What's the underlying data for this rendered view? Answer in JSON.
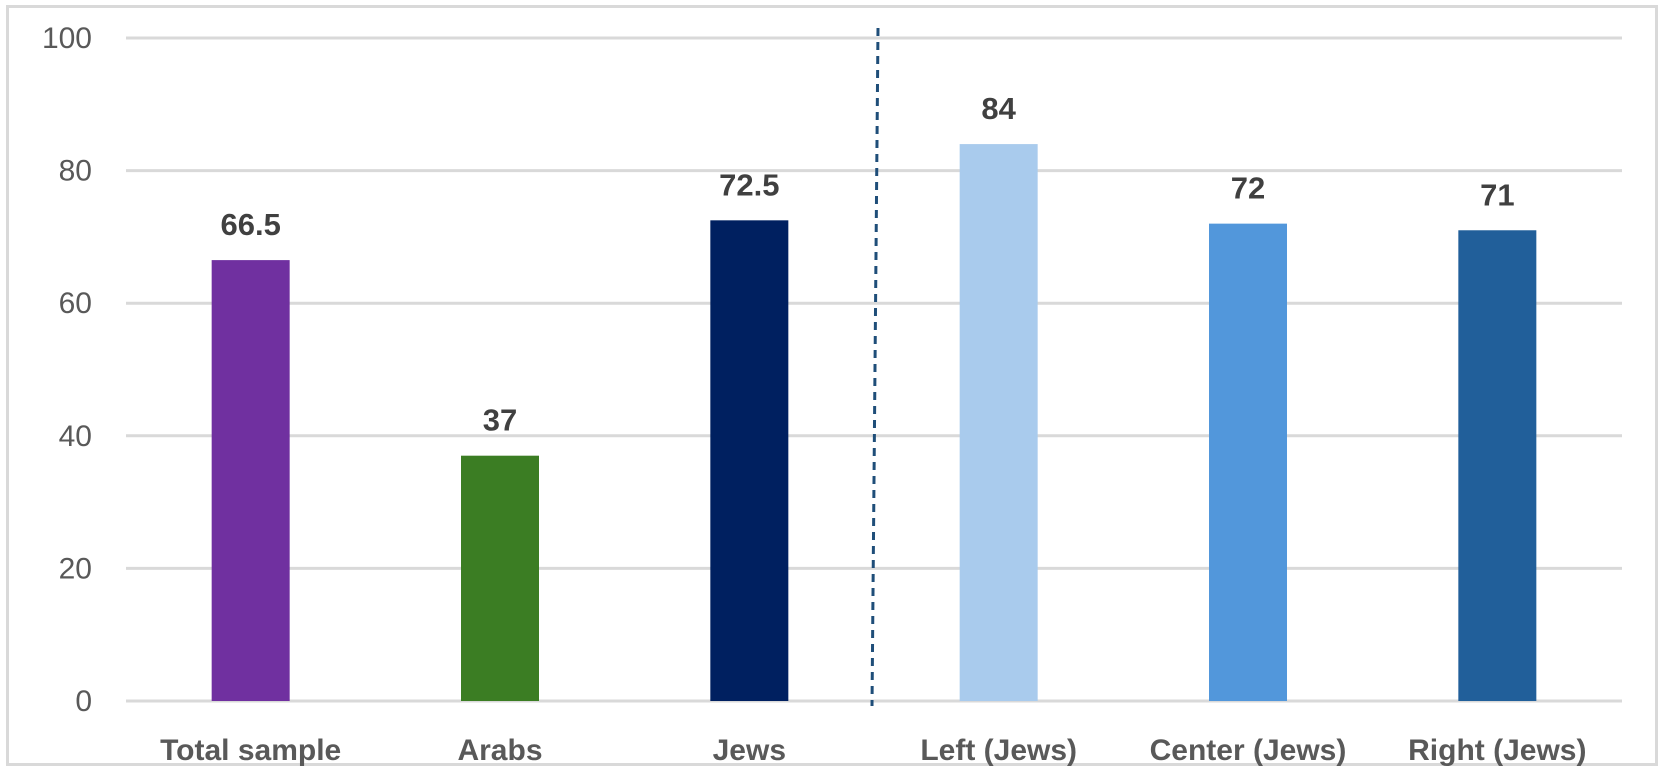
{
  "chart_data": {
    "type": "bar",
    "title": "",
    "xlabel": "",
    "ylabel": "",
    "ylim": [
      0,
      100
    ],
    "yticks": [
      0,
      20,
      40,
      60,
      80,
      100
    ],
    "grid": true,
    "categories": [
      "Total sample",
      "Arabs",
      "Jews",
      "Left (Jews)",
      "Center (Jews)",
      "Right (Jews)"
    ],
    "values": [
      66.5,
      37,
      72.5,
      84,
      72,
      71
    ],
    "data_labels": [
      "66.5",
      "37",
      "72.5",
      "84",
      "72",
      "71"
    ],
    "colors": [
      "#7030a0",
      "#3b7d23",
      "#002060",
      "#a9cbed",
      "#5297db",
      "#215f9a"
    ],
    "separator_after_index": 2
  }
}
